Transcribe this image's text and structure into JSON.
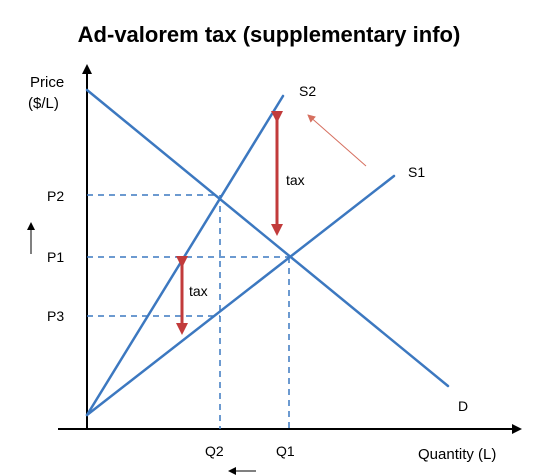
{
  "title": "Ad-valorem tax (supplementary info)",
  "axes": {
    "y_label_line1": "Price",
    "y_label_line2": "($/L)",
    "x_label": "Quantity (L)"
  },
  "price_levels": {
    "p2": "P2",
    "p1": "P1",
    "p3": "P3"
  },
  "quantity_levels": {
    "q2": "Q2",
    "q1": "Q1"
  },
  "curves": {
    "s2": "S2",
    "s1": "S1",
    "d": "D"
  },
  "tax_labels": {
    "upper": "tax",
    "lower": "tax"
  },
  "colors": {
    "curve": "#3c78c0",
    "guide": "#3c78c0",
    "tax_arrow": "#c23b3b",
    "shift_arrow": "#d66f5f",
    "axis": "#000000"
  }
}
